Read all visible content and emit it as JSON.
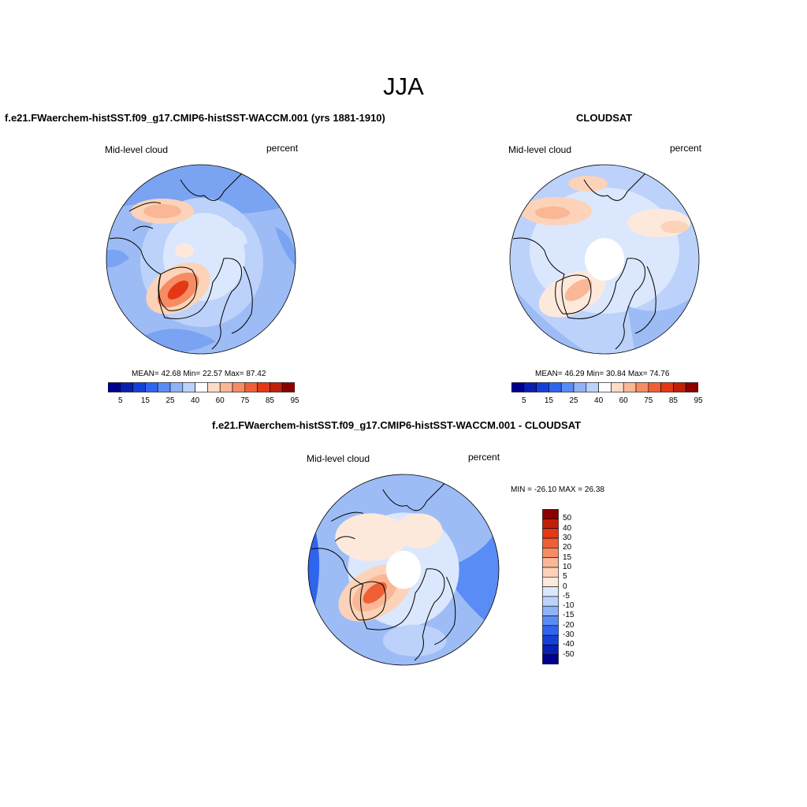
{
  "figure_title": "JJA",
  "panels": [
    {
      "title": "f.e21.FWaerchem-histSST.f09_g17.CMIP6-histSST-WACCM.001 (yrs 1881-1910)",
      "variable_label": "Mid-level cloud",
      "units_label": "percent",
      "stats": "MEAN=  42.68  Min=  22.57  Max=  87.42"
    },
    {
      "title": "CLOUDSAT",
      "variable_label": "Mid-level cloud",
      "units_label": "percent",
      "stats": "MEAN=  46.29  Min=  30.84  Max=  74.76"
    },
    {
      "title": "f.e21.FWaerchem-histSST.f09_g17.CMIP6-histSST-WACCM.001 - CLOUDSAT",
      "variable_label": "Mid-level cloud",
      "units_label": "percent",
      "stats": "MIN = -26.10 MAX =  26.38"
    }
  ],
  "colorbar_abs": {
    "colors": [
      "#00008c",
      "#0a1fb0",
      "#1540d8",
      "#2f64ef",
      "#5a8cf5",
      "#8fb3f7",
      "#bcd2fa",
      "#ffffff",
      "#fcdcc6",
      "#f9b796",
      "#f58c63",
      "#ef5f36",
      "#e33716",
      "#c01f08",
      "#8c0000"
    ],
    "tick_labels": [
      "5",
      "15",
      "25",
      "40",
      "60",
      "75",
      "85",
      "95"
    ]
  },
  "colorbar_diff": {
    "colors": [
      "#00008c",
      "#0a1fb0",
      "#1540d8",
      "#2f64ef",
      "#5a8cf5",
      "#8fb3f7",
      "#bcd2fa",
      "#dbe7fd",
      "#fde9dc",
      "#fcd3b8",
      "#f9b796",
      "#f58c63",
      "#ef5f36",
      "#e33716",
      "#c01f08",
      "#8c0000"
    ],
    "tick_labels": [
      "50",
      "40",
      "30",
      "20",
      "15",
      "10",
      "5",
      "0",
      "-5",
      "-10",
      "-15",
      "-20",
      "-30",
      "-40",
      "-50"
    ]
  }
}
